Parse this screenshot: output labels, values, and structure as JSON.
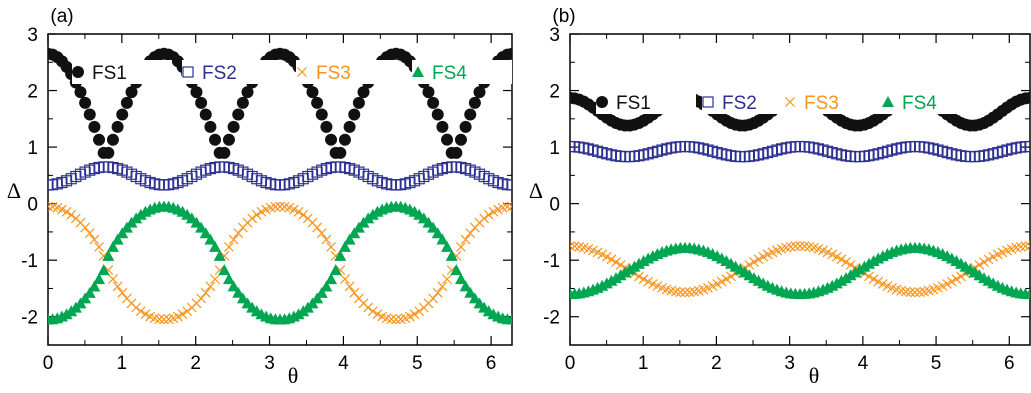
{
  "chart_data": [
    {
      "type": "scatter",
      "panel_label": "(a)",
      "xlabel": "θ",
      "ylabel": "Δ",
      "xlim": [
        0,
        6.283
      ],
      "ylim": [
        -2.5,
        3
      ],
      "xticks": [
        "0",
        "1",
        "2",
        "3",
        "4",
        "5",
        "6"
      ],
      "yticks": [
        "-2",
        "-1",
        "0",
        "1",
        "2",
        "3"
      ],
      "x_tick_values": [
        0,
        1,
        2,
        3,
        4,
        5,
        6
      ],
      "y_tick_values": [
        -2,
        -1,
        0,
        1,
        2,
        3
      ],
      "legend_placement": "top",
      "series": [
        {
          "name": "FS1",
          "marker": "filled-circle",
          "color": "#111111",
          "model": "fs1_a",
          "description": "|cos 2θ| shape, max 2.65 at θ=0, π/2, π, 3π/2, 2π; min 0.78 at θ=π/4+kπ/2"
        },
        {
          "name": "FS2",
          "marker": "open-square",
          "color": "#2e3192",
          "model": "fs2_a",
          "description": "oscillates between 0.33 (θ=0, π/2, π, ...) and 0.65 (θ=π/4+kπ/2)"
        },
        {
          "name": "FS3",
          "marker": "cross",
          "color": "#f7941d",
          "model": "fs3_a",
          "description": "max -0.05 at θ=0, π, 2π; min -2.05 at θ=π/2, 3π/2"
        },
        {
          "name": "FS4",
          "marker": "filled-triangle",
          "color": "#00a651",
          "model": "fs4_a",
          "description": "max -0.05 at θ=π/2, 3π/2; min -2.05 at θ=0, π, 2π"
        }
      ],
      "key_points": {
        "FS1": [
          [
            0,
            2.65
          ],
          [
            0.785,
            0.78
          ],
          [
            1.571,
            2.65
          ],
          [
            2.356,
            0.78
          ],
          [
            3.142,
            2.65
          ],
          [
            3.927,
            0.78
          ],
          [
            4.712,
            2.65
          ],
          [
            5.498,
            0.78
          ],
          [
            6.283,
            2.65
          ]
        ],
        "FS2": [
          [
            0,
            0.33
          ],
          [
            0.785,
            0.65
          ],
          [
            1.571,
            0.33
          ],
          [
            2.356,
            0.65
          ],
          [
            3.142,
            0.33
          ],
          [
            3.927,
            0.65
          ],
          [
            4.712,
            0.33
          ],
          [
            5.498,
            0.65
          ],
          [
            6.283,
            0.33
          ]
        ],
        "FS3": [
          [
            0,
            -0.05
          ],
          [
            1.571,
            -2.05
          ],
          [
            3.142,
            -0.05
          ],
          [
            4.712,
            -2.05
          ],
          [
            6.283,
            -0.05
          ]
        ],
        "FS4": [
          [
            0,
            -2.05
          ],
          [
            1.571,
            -0.05
          ],
          [
            3.142,
            -2.05
          ],
          [
            4.712,
            -0.05
          ],
          [
            6.283,
            -2.05
          ]
        ]
      }
    },
    {
      "type": "scatter",
      "panel_label": "(b)",
      "xlabel": "θ",
      "ylabel": "Δ",
      "xlim": [
        0,
        6.283
      ],
      "ylim": [
        -2.5,
        3
      ],
      "xticks": [
        "0",
        "1",
        "2",
        "3",
        "4",
        "5",
        "6"
      ],
      "yticks": [
        "-2",
        "-1",
        "0",
        "1",
        "2",
        "3"
      ],
      "x_tick_values": [
        0,
        1,
        2,
        3,
        4,
        5,
        6
      ],
      "y_tick_values": [
        -2,
        -1,
        0,
        1,
        2,
        3
      ],
      "legend_placement": "top",
      "series": [
        {
          "name": "FS1",
          "marker": "filled-circle",
          "color": "#111111",
          "model": "fs1_b",
          "description": "oscillates between 1.87 (θ=0, π/2, π, ...) and 1.38 (θ=π/4+kπ/2)"
        },
        {
          "name": "FS2",
          "marker": "open-square",
          "color": "#2e3192",
          "model": "fs2_b",
          "description": "oscillates between 1.01 (θ=0, π/2, π, ...) and 0.83 (θ=π/4+kπ/2)"
        },
        {
          "name": "FS3",
          "marker": "cross",
          "color": "#f7941d",
          "model": "fs3_b",
          "description": "max -0.75 at θ=0, π, 2π; min -1.57 at θ=π/2, 3π/2"
        },
        {
          "name": "FS4",
          "marker": "filled-triangle",
          "color": "#00a651",
          "model": "fs4_b",
          "description": "max -0.78 at θ=π/2, 3π/2; min -1.6 at θ=0, π, 2π"
        }
      ],
      "key_points": {
        "FS1": [
          [
            0,
            1.87
          ],
          [
            0.785,
            1.38
          ],
          [
            1.571,
            1.87
          ],
          [
            2.356,
            1.38
          ],
          [
            3.142,
            1.87
          ],
          [
            3.927,
            1.38
          ],
          [
            4.712,
            1.87
          ],
          [
            5.498,
            1.38
          ],
          [
            6.283,
            1.87
          ]
        ],
        "FS2": [
          [
            0,
            1.01
          ],
          [
            0.785,
            0.83
          ],
          [
            1.571,
            1.01
          ],
          [
            2.356,
            0.83
          ],
          [
            3.142,
            1.01
          ],
          [
            3.927,
            0.83
          ],
          [
            4.712,
            1.01
          ],
          [
            5.498,
            0.83
          ],
          [
            6.283,
            1.01
          ]
        ],
        "FS3": [
          [
            0,
            -0.75
          ],
          [
            1.571,
            -1.57
          ],
          [
            3.142,
            -0.75
          ],
          [
            4.712,
            -1.57
          ],
          [
            6.283,
            -0.75
          ]
        ],
        "FS4": [
          [
            0,
            -1.6
          ],
          [
            1.571,
            -0.78
          ],
          [
            3.142,
            -1.6
          ],
          [
            4.712,
            -0.78
          ],
          [
            6.283,
            -1.6
          ]
        ]
      }
    }
  ]
}
